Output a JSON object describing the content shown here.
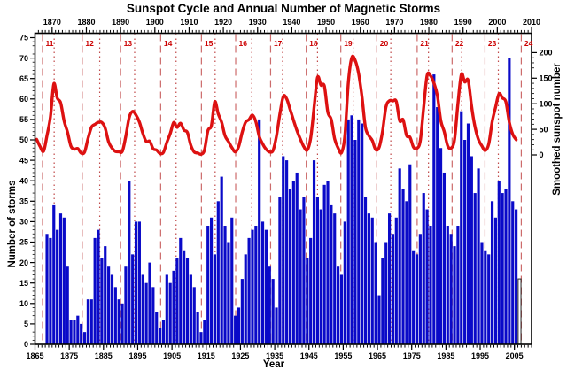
{
  "title": "Sunspot Cycle and Annual Number of Magnetic Storms",
  "axes": {
    "bottom": {
      "label": "Year",
      "ticks": [
        1865,
        1875,
        1885,
        1895,
        1905,
        1915,
        1925,
        1935,
        1945,
        1955,
        1965,
        1975,
        1985,
        1995,
        2005
      ]
    },
    "top": {
      "ticks": [
        1870,
        1880,
        1890,
        1900,
        1910,
        1920,
        1930,
        1940,
        1950,
        1960,
        1970,
        1980,
        1990,
        2000,
        2010
      ]
    },
    "left": {
      "label": "Number of storms",
      "ticks": [
        0,
        5,
        10,
        15,
        20,
        25,
        30,
        35,
        40,
        45,
        50,
        55,
        60,
        65,
        70,
        75
      ]
    },
    "right": {
      "label": "Smoothed sunspot number",
      "ticks": [
        0,
        50,
        100,
        150,
        200
      ]
    }
  },
  "colors": {
    "bar": "#0a0ac8",
    "bar_outline_fill": "#ffffff",
    "bar_outline_stroke": "#222222",
    "sunspot_line": "#dd1111",
    "cycle_start_dashed": "#cc6b6b",
    "cycle_max_dotted": "#c04848",
    "cycle_label": "#cc0000",
    "frame": "#000000"
  },
  "chart_data": {
    "type": "composite",
    "xlim": [
      1865,
      2010
    ],
    "left_ylim": [
      0,
      75
    ],
    "right_ylim": [
      0,
      200
    ],
    "grid": "off",
    "series": [
      {
        "name": "Annual number of magnetic storms",
        "type": "bar",
        "axis": "left",
        "start_year": 1868,
        "values": [
          27,
          26,
          34,
          28,
          32,
          31,
          19,
          6,
          6,
          7,
          5,
          3,
          11,
          11,
          26,
          28,
          21,
          24,
          19,
          17,
          14,
          11,
          10,
          19,
          40,
          22,
          30,
          30,
          17,
          15,
          20,
          14,
          8,
          4,
          6,
          17,
          15,
          18,
          21,
          26,
          23,
          21,
          17,
          14,
          8,
          3,
          6,
          29,
          31,
          22,
          35,
          41,
          29,
          25,
          31,
          7,
          9,
          16,
          22,
          26,
          28,
          29,
          55,
          30,
          28,
          19,
          16,
          9,
          36,
          46,
          45,
          38,
          40,
          42,
          33,
          36,
          21,
          26,
          45,
          36,
          33,
          39,
          40,
          34,
          32,
          19,
          17,
          30,
          55,
          56,
          50,
          55,
          54,
          36,
          32,
          31,
          25,
          12,
          21,
          25,
          32,
          27,
          31,
          43,
          38,
          35,
          44,
          23,
          22,
          27,
          37,
          33,
          29,
          66,
          58,
          48,
          42,
          29,
          27,
          24,
          29,
          57,
          50,
          54,
          46,
          37,
          43,
          25,
          23,
          22,
          35,
          31,
          40,
          37,
          38,
          70,
          35,
          33
        ]
      },
      {
        "name": "Partial year (open bar)",
        "type": "bar-outline",
        "axis": "left",
        "start_year": 2006,
        "values": [
          16
        ]
      },
      {
        "name": "Smoothed sunspot number",
        "type": "line",
        "axis": "right",
        "start_year": 1865,
        "values": [
          30.5,
          16.3,
          7.3,
          37.6,
          74.0,
          139.0,
          111.2,
          101.6,
          66.2,
          44.7,
          17.0,
          11.3,
          12.4,
          3.4,
          6.0,
          32.3,
          54.3,
          59.7,
          63.7,
          63.5,
          52.2,
          25.4,
          13.1,
          6.8,
          6.3,
          7.1,
          35.6,
          73.0,
          85.1,
          78.0,
          64.0,
          41.8,
          26.2,
          26.7,
          12.1,
          9.5,
          2.7,
          5.0,
          24.4,
          42.0,
          63.5,
          53.8,
          62.0,
          48.5,
          43.9,
          18.6,
          5.7,
          3.6,
          1.4,
          9.6,
          47.4,
          57.1,
          103.9,
          80.6,
          63.6,
          37.6,
          26.1,
          14.2,
          5.8,
          16.7,
          44.3,
          63.9,
          69.0,
          77.8,
          64.9,
          35.7,
          21.2,
          11.1,
          5.7,
          8.7,
          36.1,
          79.7,
          114.4,
          109.6,
          88.8,
          67.8,
          47.5,
          30.6,
          16.3,
          9.6,
          33.2,
          92.6,
          151.6,
          136.3,
          134.7,
          83.9,
          69.4,
          31.5,
          13.9,
          4.4,
          38.0,
          141.7,
          190.2,
          184.8,
          159.0,
          112.3,
          53.9,
          37.6,
          27.9,
          10.2,
          15.1,
          47.0,
          93.8,
          105.9,
          105.5,
          104.5,
          66.6,
          68.9,
          38.0,
          34.5,
          15.5,
          12.6,
          27.5,
          92.5,
          155.4,
          154.6,
          140.4,
          115.9,
          66.6,
          45.9,
          17.9,
          13.4,
          29.4,
          100.2,
          157.6,
          142.6,
          145.7,
          94.3,
          54.6,
          29.9,
          17.5,
          8.6,
          21.5,
          64.3,
          93.3,
          119.6,
          111.0,
          104.0,
          63.7,
          40.4,
          29.8
        ]
      }
    ],
    "cycles": {
      "starts": [
        {
          "label": "11",
          "year": 1867.2
        },
        {
          "label": "12",
          "year": 1878.8
        },
        {
          "label": "13",
          "year": 1890.0
        },
        {
          "label": "14",
          "year": 1901.7
        },
        {
          "label": "15",
          "year": 1913.6
        },
        {
          "label": "16",
          "year": 1923.6
        },
        {
          "label": "17",
          "year": 1933.8
        },
        {
          "label": "18",
          "year": 1944.2
        },
        {
          "label": "19",
          "year": 1954.3
        },
        {
          "label": "20",
          "year": 1964.8
        },
        {
          "label": "21",
          "year": 1976.6
        },
        {
          "label": "22",
          "year": 1986.8
        },
        {
          "label": "23",
          "year": 1996.4
        },
        {
          "label": "24",
          "year": 2007.0
        }
      ],
      "maxima_years": [
        1870.6,
        1883.9,
        1894.1,
        1906.2,
        1917.6,
        1928.3,
        1937.3,
        1947.5,
        1957.9,
        1968.9,
        1979.9,
        1989.6,
        2000.3
      ]
    }
  }
}
